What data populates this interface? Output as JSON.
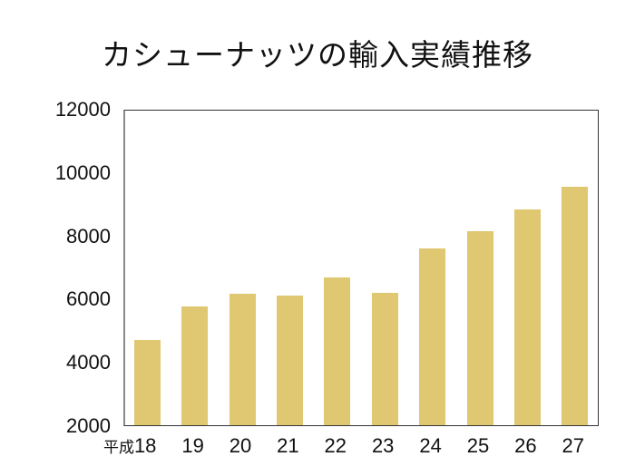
{
  "chart_data": {
    "type": "bar",
    "title": "カシューナッツの輸入実績推移",
    "xlabel": "",
    "ylabel": "",
    "x_prefix": "平成",
    "categories": [
      "18",
      "19",
      "20",
      "21",
      "22",
      "23",
      "24",
      "25",
      "26",
      "27"
    ],
    "values": [
      4690,
      5750,
      6150,
      6100,
      6670,
      6180,
      7590,
      8130,
      8820,
      9540
    ],
    "ylim": [
      2000,
      12000
    ],
    "yticks": [
      2000,
      4000,
      6000,
      8000,
      10000,
      12000
    ],
    "grid": false,
    "legend": null,
    "bar_color": "#E0C772"
  }
}
